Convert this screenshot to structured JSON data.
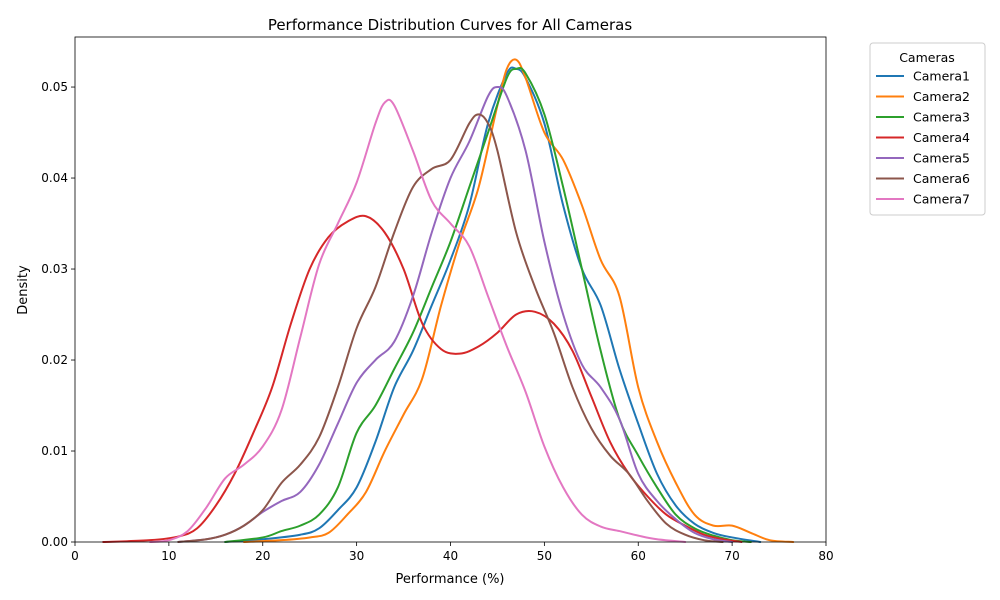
{
  "chart_data": {
    "type": "line",
    "title": "Performance Distribution Curves for All Cameras",
    "xlabel": "Performance (%)",
    "ylabel": "Density",
    "xlim": [
      0,
      80
    ],
    "ylim": [
      0,
      0.0555
    ],
    "xticks": [
      0,
      10,
      20,
      30,
      40,
      50,
      60,
      70,
      80
    ],
    "xtick_labels": [
      "0",
      "10",
      "20",
      "30",
      "40",
      "50",
      "60",
      "70",
      "80"
    ],
    "yticks": [
      0,
      0.01,
      0.02,
      0.03,
      0.04,
      0.05
    ],
    "ytick_labels": [
      "0.00",
      "0.01",
      "0.02",
      "0.03",
      "0.04",
      "0.05"
    ],
    "grid": false,
    "legend": {
      "title": "Cameras",
      "placement": "outside-upper-right"
    },
    "series": [
      {
        "name": "Camera1",
        "color": "#1f77b4",
        "points": [
          [
            16,
            0
          ],
          [
            20,
            0.0003
          ],
          [
            24,
            0.0008
          ],
          [
            26,
            0.0015
          ],
          [
            28,
            0.0035
          ],
          [
            30,
            0.006
          ],
          [
            32,
            0.011
          ],
          [
            34,
            0.017
          ],
          [
            36,
            0.021
          ],
          [
            38,
            0.026
          ],
          [
            40,
            0.031
          ],
          [
            42,
            0.037
          ],
          [
            44,
            0.046
          ],
          [
            46,
            0.0515
          ],
          [
            47,
            0.052
          ],
          [
            48,
            0.051
          ],
          [
            50,
            0.046
          ],
          [
            52,
            0.037
          ],
          [
            54,
            0.03
          ],
          [
            56,
            0.026
          ],
          [
            58,
            0.019
          ],
          [
            60,
            0.013
          ],
          [
            62,
            0.0075
          ],
          [
            64,
            0.004
          ],
          [
            66,
            0.002
          ],
          [
            68,
            0.001
          ],
          [
            70,
            0.0005
          ],
          [
            73,
            0
          ]
        ]
      },
      {
        "name": "Camera2",
        "color": "#ff7f0e",
        "points": [
          [
            18,
            0
          ],
          [
            22,
            0.0002
          ],
          [
            25,
            0.0005
          ],
          [
            27,
            0.001
          ],
          [
            29,
            0.003
          ],
          [
            31,
            0.0055
          ],
          [
            33,
            0.01
          ],
          [
            35,
            0.014
          ],
          [
            37,
            0.018
          ],
          [
            39,
            0.026
          ],
          [
            41,
            0.033
          ],
          [
            43,
            0.039
          ],
          [
            45,
            0.048
          ],
          [
            46,
            0.052
          ],
          [
            47,
            0.053
          ],
          [
            48,
            0.051
          ],
          [
            50,
            0.045
          ],
          [
            52,
            0.042
          ],
          [
            54,
            0.037
          ],
          [
            56,
            0.031
          ],
          [
            58,
            0.027
          ],
          [
            60,
            0.017
          ],
          [
            62,
            0.011
          ],
          [
            64,
            0.0065
          ],
          [
            66,
            0.003
          ],
          [
            68,
            0.0018
          ],
          [
            70,
            0.0018
          ],
          [
            72,
            0.001
          ],
          [
            74,
            0.0002
          ],
          [
            76.5,
            0
          ]
        ]
      },
      {
        "name": "Camera3",
        "color": "#2ca02c",
        "points": [
          [
            16,
            0
          ],
          [
            20,
            0.0005
          ],
          [
            22,
            0.0012
          ],
          [
            24,
            0.0018
          ],
          [
            26,
            0.003
          ],
          [
            28,
            0.006
          ],
          [
            30,
            0.012
          ],
          [
            32,
            0.015
          ],
          [
            34,
            0.019
          ],
          [
            36,
            0.023
          ],
          [
            38,
            0.028
          ],
          [
            40,
            0.033
          ],
          [
            42,
            0.039
          ],
          [
            44,
            0.045
          ],
          [
            46,
            0.051
          ],
          [
            47,
            0.052
          ],
          [
            48,
            0.0515
          ],
          [
            50,
            0.047
          ],
          [
            52,
            0.039
          ],
          [
            54,
            0.03
          ],
          [
            56,
            0.021
          ],
          [
            58,
            0.0135
          ],
          [
            60,
            0.0095
          ],
          [
            62,
            0.006
          ],
          [
            64,
            0.003
          ],
          [
            66,
            0.0015
          ],
          [
            68,
            0.0007
          ],
          [
            70,
            0.0002
          ],
          [
            72,
            0
          ]
        ]
      },
      {
        "name": "Camera4",
        "color": "#d62728",
        "points": [
          [
            3,
            0
          ],
          [
            8,
            0.0002
          ],
          [
            11,
            0.0006
          ],
          [
            13,
            0.0015
          ],
          [
            15,
            0.004
          ],
          [
            17,
            0.0075
          ],
          [
            19,
            0.012
          ],
          [
            21,
            0.017
          ],
          [
            23,
            0.024
          ],
          [
            25,
            0.03
          ],
          [
            27,
            0.0335
          ],
          [
            29,
            0.0352
          ],
          [
            31,
            0.0358
          ],
          [
            33,
            0.034
          ],
          [
            35,
            0.03
          ],
          [
            37,
            0.024
          ],
          [
            39,
            0.0212
          ],
          [
            41,
            0.0207
          ],
          [
            43,
            0.0215
          ],
          [
            45,
            0.023
          ],
          [
            47,
            0.025
          ],
          [
            49,
            0.0253
          ],
          [
            51,
            0.024
          ],
          [
            53,
            0.021
          ],
          [
            55,
            0.016
          ],
          [
            57,
            0.011
          ],
          [
            59,
            0.0075
          ],
          [
            61,
            0.005
          ],
          [
            63,
            0.003
          ],
          [
            65,
            0.0018
          ],
          [
            67,
            0.0008
          ],
          [
            69,
            0.0003
          ],
          [
            71,
            0
          ]
        ]
      },
      {
        "name": "Camera5",
        "color": "#9467bd",
        "points": [
          [
            11,
            0
          ],
          [
            14,
            0.0003
          ],
          [
            16,
            0.0008
          ],
          [
            18,
            0.0018
          ],
          [
            20,
            0.0033
          ],
          [
            22,
            0.0045
          ],
          [
            24,
            0.0055
          ],
          [
            26,
            0.0085
          ],
          [
            28,
            0.013
          ],
          [
            30,
            0.0175
          ],
          [
            32,
            0.02
          ],
          [
            34,
            0.022
          ],
          [
            36,
            0.027
          ],
          [
            38,
            0.034
          ],
          [
            40,
            0.04
          ],
          [
            42,
            0.044
          ],
          [
            44,
            0.049
          ],
          [
            45,
            0.05
          ],
          [
            46,
            0.049
          ],
          [
            48,
            0.043
          ],
          [
            50,
            0.033
          ],
          [
            52,
            0.025
          ],
          [
            54,
            0.0195
          ],
          [
            56,
            0.017
          ],
          [
            58,
            0.0135
          ],
          [
            60,
            0.0075
          ],
          [
            62,
            0.0045
          ],
          [
            64,
            0.0025
          ],
          [
            66,
            0.001
          ],
          [
            68,
            0.0003
          ],
          [
            70,
            0
          ]
        ]
      },
      {
        "name": "Camera6",
        "color": "#8c564b",
        "points": [
          [
            11,
            0
          ],
          [
            14,
            0.0003
          ],
          [
            16,
            0.0008
          ],
          [
            18,
            0.0018
          ],
          [
            20,
            0.0035
          ],
          [
            22,
            0.0065
          ],
          [
            24,
            0.0085
          ],
          [
            26,
            0.0115
          ],
          [
            28,
            0.017
          ],
          [
            30,
            0.0235
          ],
          [
            32,
            0.028
          ],
          [
            34,
            0.034
          ],
          [
            36,
            0.039
          ],
          [
            38,
            0.041
          ],
          [
            40,
            0.042
          ],
          [
            42,
            0.046
          ],
          [
            43,
            0.047
          ],
          [
            44,
            0.046
          ],
          [
            45,
            0.043
          ],
          [
            47,
            0.034
          ],
          [
            49,
            0.028
          ],
          [
            51,
            0.023
          ],
          [
            53,
            0.017
          ],
          [
            55,
            0.0125
          ],
          [
            57,
            0.0095
          ],
          [
            59,
            0.0075
          ],
          [
            61,
            0.0045
          ],
          [
            63,
            0.002
          ],
          [
            65,
            0.0008
          ],
          [
            67,
            0.0002
          ],
          [
            69,
            0
          ]
        ]
      },
      {
        "name": "Camera7",
        "color": "#e377c2",
        "points": [
          [
            8,
            0
          ],
          [
            10,
            0.0002
          ],
          [
            12,
            0.0012
          ],
          [
            14,
            0.0038
          ],
          [
            16,
            0.007
          ],
          [
            18,
            0.0085
          ],
          [
            20,
            0.0105
          ],
          [
            22,
            0.0145
          ],
          [
            24,
            0.0225
          ],
          [
            26,
            0.0305
          ],
          [
            28,
            0.035
          ],
          [
            30,
            0.0395
          ],
          [
            32,
            0.046
          ],
          [
            33,
            0.0483
          ],
          [
            34,
            0.048
          ],
          [
            36,
            0.043
          ],
          [
            38,
            0.0375
          ],
          [
            40,
            0.035
          ],
          [
            42,
            0.0325
          ],
          [
            44,
            0.027
          ],
          [
            46,
            0.0215
          ],
          [
            48,
            0.0165
          ],
          [
            50,
            0.0105
          ],
          [
            52,
            0.006
          ],
          [
            54,
            0.003
          ],
          [
            56,
            0.0017
          ],
          [
            58,
            0.0012
          ],
          [
            60,
            0.0007
          ],
          [
            62,
            0.0003
          ],
          [
            65,
            0
          ]
        ]
      }
    ]
  }
}
